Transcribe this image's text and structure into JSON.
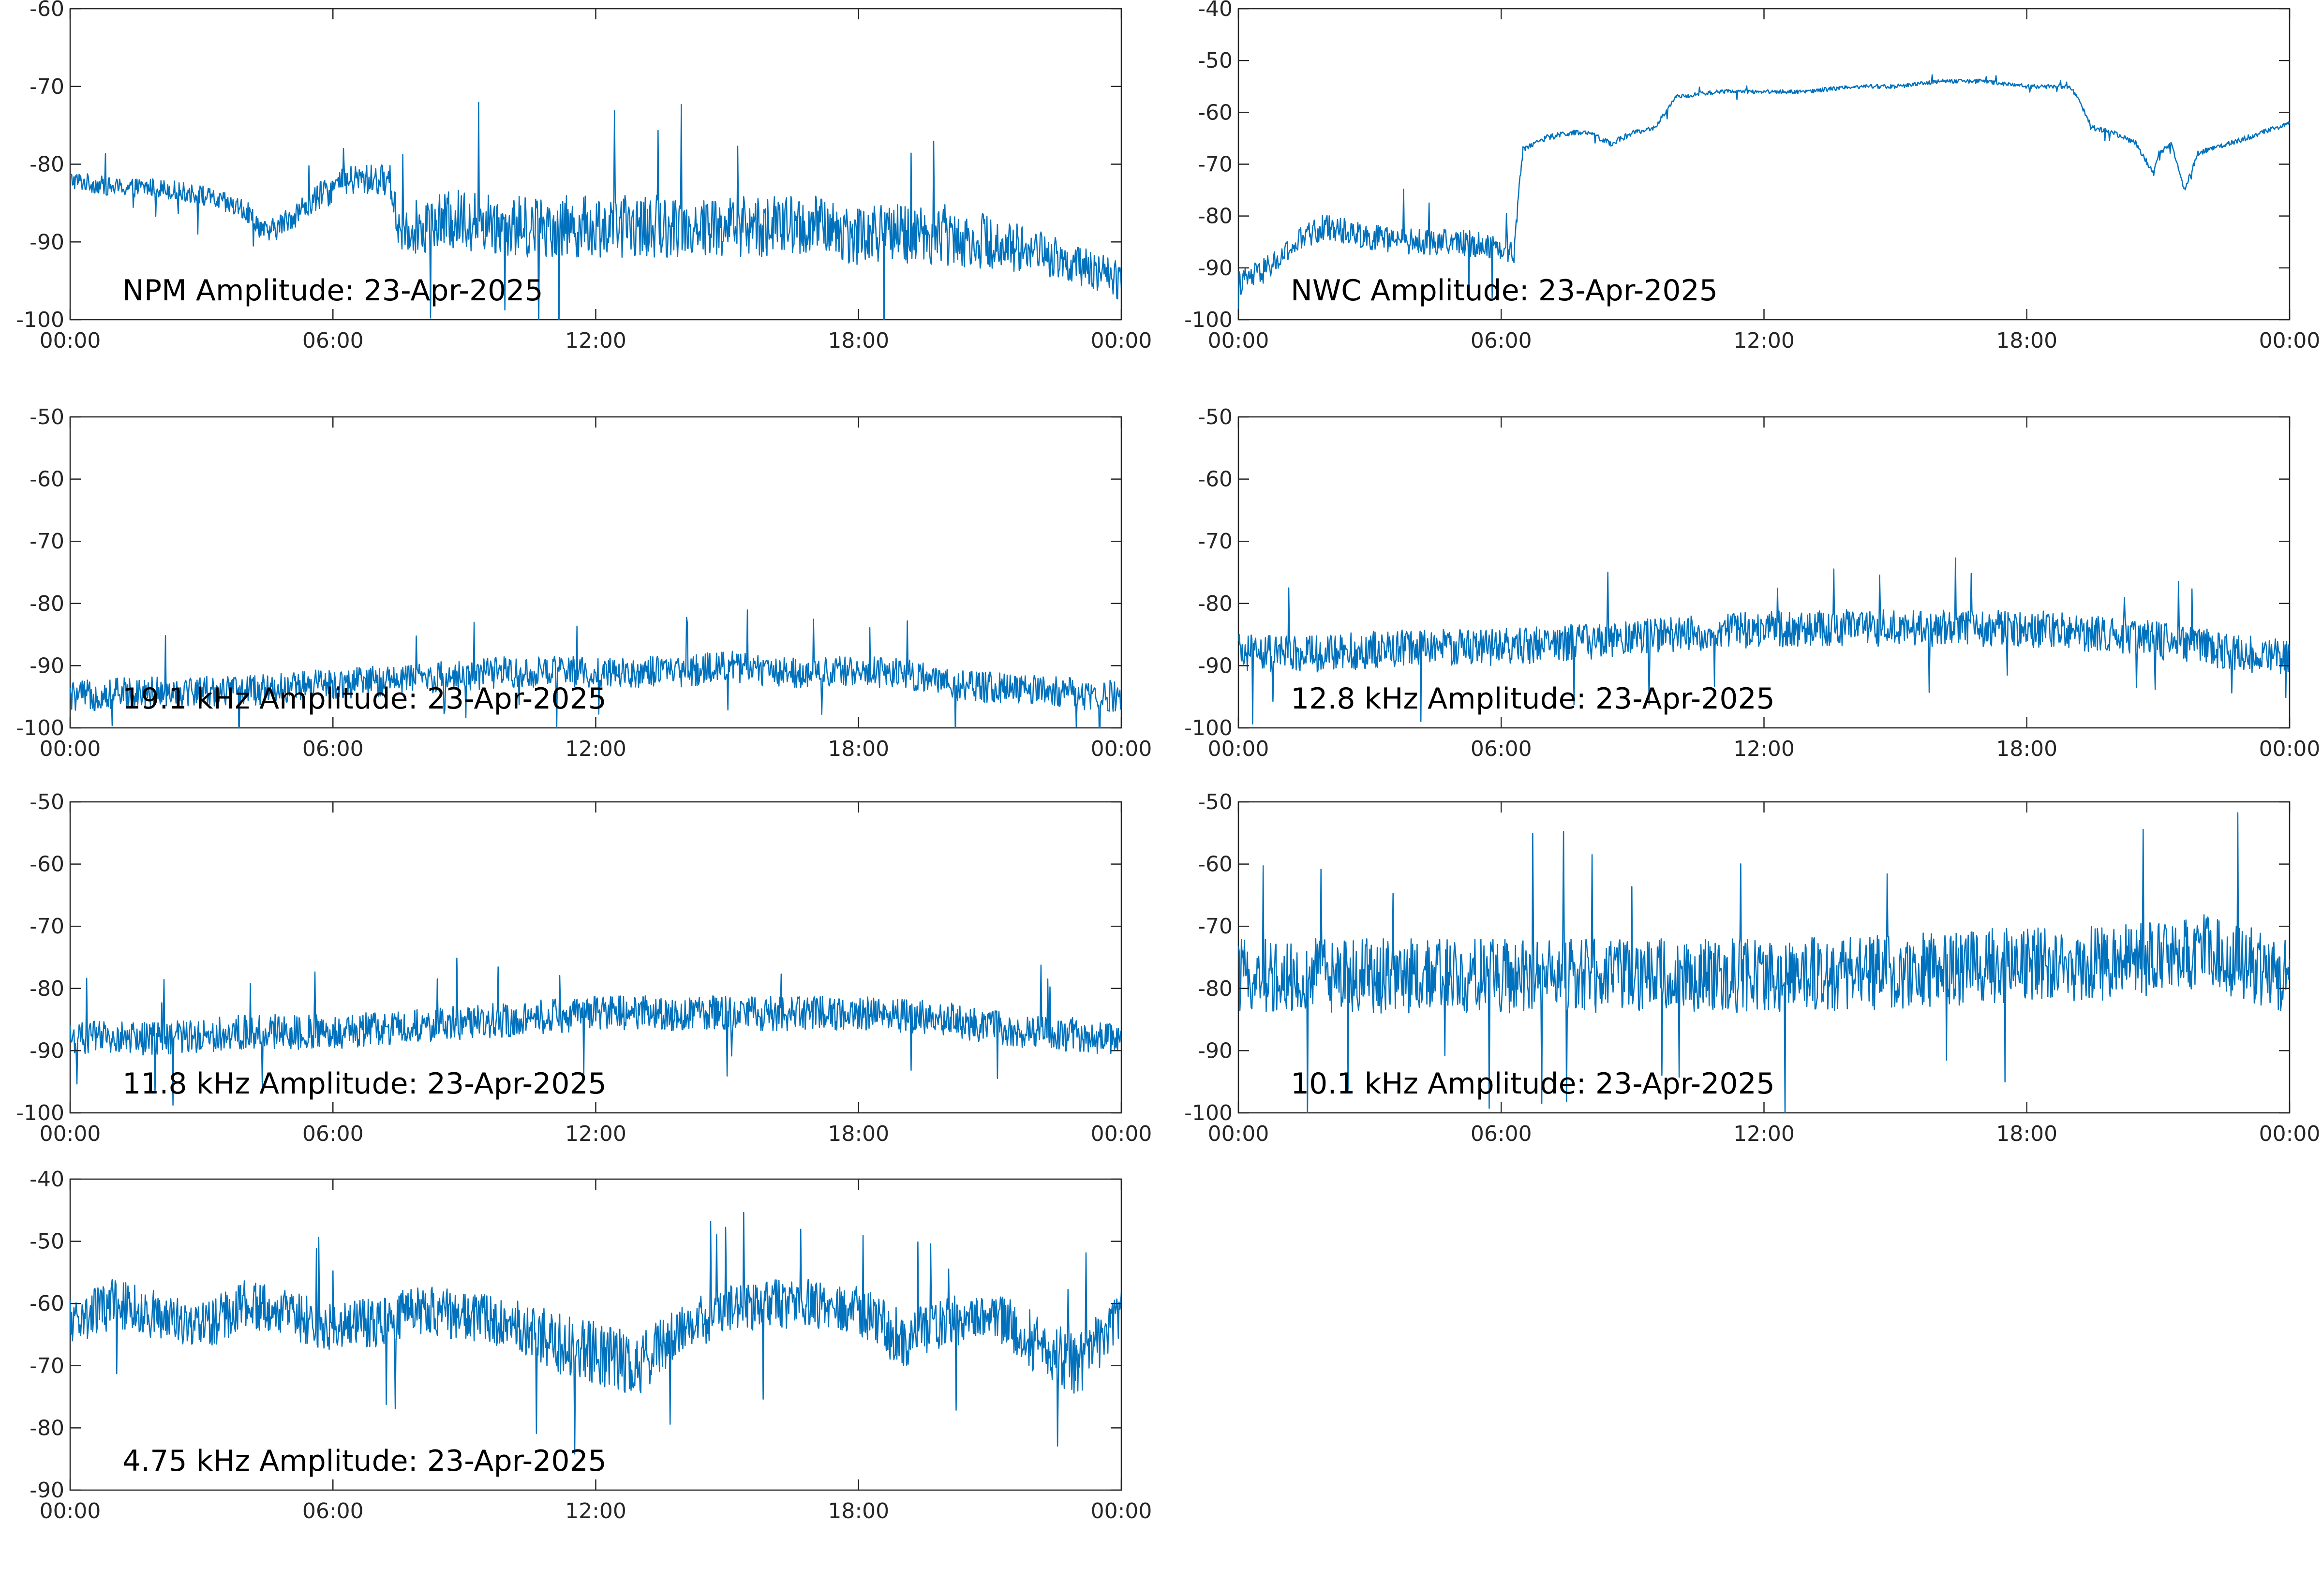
{
  "figure": {
    "line_color": "#0072BD",
    "axis_color": "#262626"
  },
  "chart_data": [
    {
      "type": "line",
      "title": "NPM Amplitude: 23-Apr-2025",
      "x_ticks": [
        "00:00",
        "06:00",
        "12:00",
        "18:00",
        "00:00"
      ],
      "xlim_hours": [
        0,
        24
      ],
      "y_ticks": [
        "-60",
        "-70",
        "-80",
        "-90",
        "-100"
      ],
      "ylim": [
        -100,
        -60
      ],
      "series": [
        {
          "x": [
            0,
            1,
            2,
            3,
            4,
            4.5,
            5,
            5.5,
            6,
            6.5,
            7,
            7.3,
            7.5,
            8,
            9,
            10,
            11,
            12,
            13,
            14,
            15,
            16,
            17,
            18,
            19,
            20,
            21,
            22,
            23,
            24
          ],
          "values": [
            -82,
            -83,
            -83,
            -84,
            -86,
            -89,
            -87,
            -85,
            -83,
            -82,
            -82,
            -82,
            -88,
            -88,
            -87,
            -88,
            -88,
            -88,
            -88,
            -88,
            -88,
            -88,
            -88,
            -89,
            -89,
            -89,
            -90,
            -91,
            -93,
            -95
          ],
          "noise": [
            1.2,
            1.2,
            1.2,
            1.3,
            1.5,
            1.5,
            1.6,
            1.8,
            2,
            2,
            2,
            2,
            3.5,
            3.5,
            4,
            4,
            4,
            4,
            4,
            4,
            4,
            4,
            4,
            4,
            4,
            4,
            3.5,
            3,
            2.5,
            2.5
          ]
        }
      ]
    },
    {
      "type": "line",
      "title": "NWC Amplitude: 23-Apr-2025",
      "x_ticks": [
        "00:00",
        "06:00",
        "12:00",
        "18:00",
        "00:00"
      ],
      "xlim_hours": [
        0,
        24
      ],
      "y_ticks": [
        "-40",
        "-50",
        "-60",
        "-70",
        "-80",
        "-90",
        "-100"
      ],
      "ylim": [
        -100,
        -40
      ],
      "series": [
        {
          "x": [
            0,
            0.5,
            1,
            1.5,
            2,
            3,
            4,
            5,
            6,
            6.3,
            6.4,
            6.5,
            7,
            7.5,
            8,
            8.5,
            9,
            9.5,
            10,
            11,
            12,
            13,
            14,
            15,
            16,
            17,
            18,
            19,
            19.2,
            19.5,
            20,
            20.5,
            20.9,
            21,
            21.3,
            21.6,
            21.9,
            22.2,
            23,
            24
          ],
          "values": [
            -93,
            -91,
            -88,
            -84,
            -82,
            -84,
            -85,
            -85,
            -86,
            -87,
            -75,
            -67,
            -65,
            -64,
            -64,
            -66,
            -64,
            -63,
            -57,
            -56,
            -56,
            -56,
            -55,
            -55,
            -54,
            -54,
            -55,
            -55,
            -58,
            -63,
            -64,
            -66,
            -72,
            -68,
            -66,
            -75,
            -68,
            -67,
            -65,
            -62
          ],
          "noise": [
            2.5,
            2.5,
            2.5,
            2.5,
            2.5,
            2.5,
            2.5,
            2.5,
            2.5,
            2.5,
            1,
            0.6,
            0.6,
            0.6,
            0.5,
            0.5,
            0.5,
            0.5,
            0.4,
            0.4,
            0.4,
            0.4,
            0.4,
            0.4,
            0.4,
            0.4,
            0.4,
            0.4,
            0.4,
            0.5,
            0.5,
            0.5,
            0.5,
            0.5,
            0.5,
            0.5,
            0.5,
            0.5,
            0.5,
            0.5
          ]
        }
      ]
    },
    {
      "type": "line",
      "title": "19.1 kHz Amplitude: 23-Apr-2025",
      "x_ticks": [
        "00:00",
        "06:00",
        "12:00",
        "18:00",
        "00:00"
      ],
      "xlim_hours": [
        0,
        24
      ],
      "y_ticks": [
        "-50",
        "-60",
        "-70",
        "-80",
        "-90",
        "-100"
      ],
      "ylim": [
        -100,
        -50
      ],
      "series": [
        {
          "x": [
            0,
            2,
            4,
            6,
            8,
            10,
            12,
            14,
            15,
            16,
            18,
            19,
            20,
            22,
            24
          ],
          "values": [
            -95,
            -94,
            -94,
            -93,
            -92,
            -91,
            -91,
            -91,
            -90,
            -91,
            -91,
            -91,
            -93,
            -94,
            -95
          ],
          "noise": [
            2.5,
            2.5,
            2.5,
            2.5,
            2.5,
            2.5,
            2.5,
            2.5,
            2.5,
            2.5,
            2.5,
            2.5,
            2.5,
            2.5,
            2.5
          ]
        }
      ]
    },
    {
      "type": "line",
      "title": "12.8 kHz Amplitude: 23-Apr-2025",
      "x_ticks": [
        "00:00",
        "06:00",
        "12:00",
        "18:00",
        "00:00"
      ],
      "xlim_hours": [
        0,
        24
      ],
      "y_ticks": [
        "-50",
        "-60",
        "-70",
        "-80",
        "-90",
        "-100"
      ],
      "ylim": [
        -100,
        -50
      ],
      "series": [
        {
          "x": [
            0,
            2,
            4,
            6,
            8,
            10,
            12,
            14,
            16,
            18,
            20,
            22,
            24
          ],
          "values": [
            -88,
            -88,
            -87,
            -87,
            -86,
            -85,
            -84,
            -84,
            -84,
            -84,
            -85,
            -87,
            -89
          ],
          "noise": [
            3,
            3,
            3,
            3,
            3,
            3,
            3,
            3,
            3,
            3,
            3,
            3,
            3
          ]
        }
      ]
    },
    {
      "type": "line",
      "title": "11.8 kHz Amplitude: 23-Apr-2025",
      "x_ticks": [
        "00:00",
        "06:00",
        "12:00",
        "18:00",
        "00:00"
      ],
      "xlim_hours": [
        0,
        24
      ],
      "y_ticks": [
        "-50",
        "-60",
        "-70",
        "-80",
        "-90",
        "-100"
      ],
      "ylim": [
        -100,
        -50
      ],
      "series": [
        {
          "x": [
            0,
            2,
            4,
            6,
            8,
            10,
            12,
            14,
            16,
            18,
            20,
            22,
            24
          ],
          "values": [
            -88,
            -88,
            -87,
            -87,
            -86,
            -85,
            -84,
            -84,
            -84,
            -84,
            -85,
            -87,
            -88
          ],
          "noise": [
            2.8,
            2.8,
            2.8,
            2.8,
            2.8,
            2.8,
            2.8,
            2.8,
            2.8,
            2.8,
            2.8,
            2.8,
            2.8
          ]
        }
      ]
    },
    {
      "type": "line",
      "title": "10.1 kHz Amplitude: 23-Apr-2025",
      "x_ticks": [
        "00:00",
        "06:00",
        "12:00",
        "18:00",
        "00:00"
      ],
      "xlim_hours": [
        0,
        24
      ],
      "y_ticks": [
        "-50",
        "-60",
        "-70",
        "-80",
        "-90",
        "-100"
      ],
      "ylim": [
        -100,
        -50
      ],
      "series": [
        {
          "x": [
            0,
            4,
            8,
            12,
            16,
            18,
            20,
            22,
            24
          ],
          "values": [
            -78,
            -78,
            -78,
            -78,
            -77,
            -76,
            -76,
            -74,
            -78
          ],
          "noise": [
            6,
            6,
            6,
            6,
            6,
            6,
            6,
            6,
            6
          ]
        }
      ]
    },
    {
      "type": "line",
      "title": "4.75 kHz Amplitude: 23-Apr-2025",
      "x_ticks": [
        "00:00",
        "06:00",
        "12:00",
        "18:00",
        "00:00"
      ],
      "xlim_hours": [
        0,
        24
      ],
      "y_ticks": [
        "-40",
        "-50",
        "-60",
        "-70",
        "-80",
        "-90"
      ],
      "ylim": [
        -90,
        -40
      ],
      "series": [
        {
          "x": [
            0,
            1,
            2,
            3,
            4,
            5,
            6,
            7,
            8,
            9,
            10,
            11,
            12,
            13,
            14,
            15,
            16,
            17,
            18,
            19,
            20,
            21,
            22,
            23,
            24
          ],
          "values": [
            -63,
            -60,
            -62,
            -64,
            -60,
            -62,
            -64,
            -63,
            -61,
            -62,
            -63,
            -66,
            -68,
            -70,
            -64,
            -61,
            -60,
            -60,
            -61,
            -66,
            -63,
            -62,
            -66,
            -70,
            -62
          ],
          "noise": [
            4,
            4,
            4,
            4,
            4,
            4,
            4,
            4,
            4,
            4,
            4,
            5,
            5,
            5,
            4,
            4,
            4,
            4,
            4,
            5,
            4,
            4,
            5,
            5,
            4
          ]
        }
      ]
    }
  ]
}
